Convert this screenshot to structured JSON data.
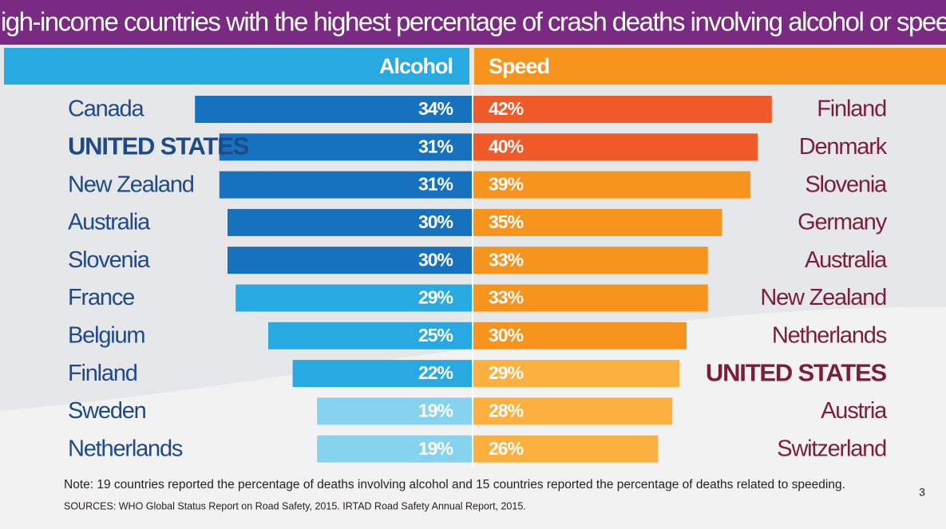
{
  "chart_data": {
    "type": "butterfly_bar",
    "title": "High-income countries with the highest percentage of crash deaths involving alcohol or speed",
    "series": [
      {
        "name": "Alcohol",
        "categories": [
          "Canada",
          "UNITED STATES",
          "New Zealand",
          "Australia",
          "Slovenia",
          "France",
          "Belgium",
          "Finland",
          "Sweden",
          "Netherlands"
        ],
        "values": [
          34,
          31,
          31,
          30,
          30,
          29,
          25,
          22,
          19,
          19
        ],
        "value_labels": [
          "34%",
          "31%",
          "31%",
          "30%",
          "30%",
          "29%",
          "25%",
          "22%",
          "19%",
          "19%"
        ],
        "colors": [
          "#1672bf",
          "#1672bf",
          "#1672bf",
          "#1672bf",
          "#1672bf",
          "#29a9e1",
          "#29a9e1",
          "#29a9e1",
          "#86d3f0",
          "#86d3f0"
        ],
        "highlight": 1
      },
      {
        "name": "Speed",
        "categories": [
          "Finland",
          "Denmark",
          "Slovenia",
          "Germany",
          "Australia",
          "New Zealand",
          "Netherlands",
          "UNITED STATES",
          "Austria",
          "Switzerland"
        ],
        "values": [
          42,
          40,
          39,
          35,
          33,
          33,
          30,
          29,
          28,
          26
        ],
        "value_labels": [
          "42%",
          "40%",
          "39%",
          "35%",
          "33%",
          "33%",
          "30%",
          "29%",
          "28%",
          "26%"
        ],
        "colors": [
          "#f15a29",
          "#f15a29",
          "#f7941d",
          "#f7941d",
          "#f7941d",
          "#f7941d",
          "#f7941d",
          "#fbb040",
          "#fbb040",
          "#fbb040"
        ],
        "highlight": 7
      }
    ]
  },
  "note": "Note: 19 countries reported the percentage of deaths involving alcohol and 15 countries reported the percentage of deaths related to speeding.",
  "sources": "SOURCES: WHO Global Status Report on Road Safety, 2015. IRTAD Road Safety Annual Report, 2015.",
  "page_number": 3
}
